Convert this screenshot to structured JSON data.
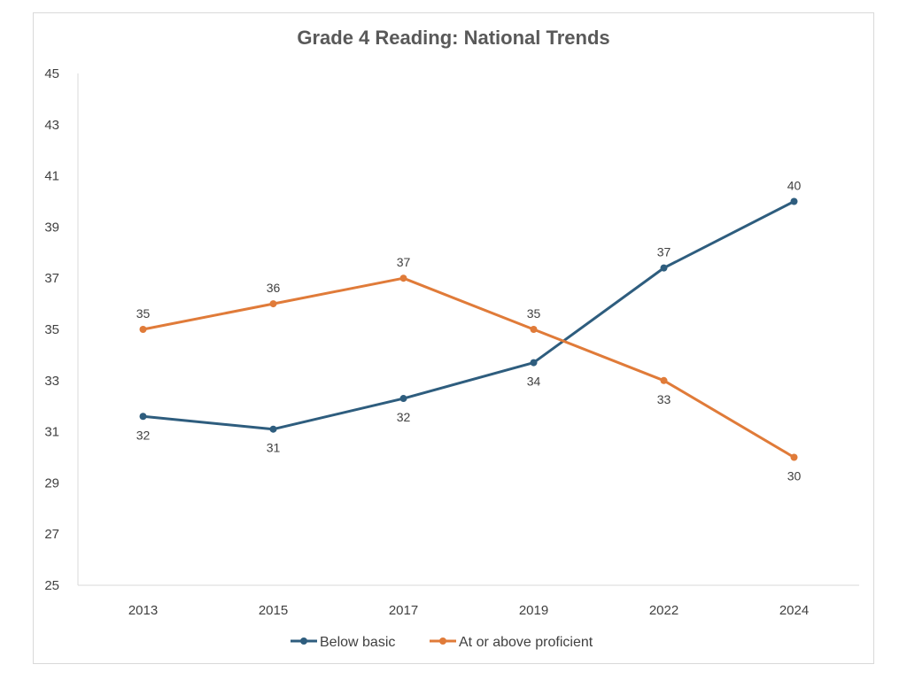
{
  "chart_data": {
    "type": "line",
    "title": "Grade 4 Reading: National Trends",
    "xlabel": "",
    "ylabel": "",
    "categories": [
      "2013",
      "2015",
      "2017",
      "2019",
      "2022",
      "2024"
    ],
    "ylim": [
      25,
      45
    ],
    "yticks": [
      25,
      27,
      29,
      31,
      33,
      35,
      37,
      39,
      41,
      43,
      45
    ],
    "grid": false,
    "legend_position": "bottom",
    "series": [
      {
        "name": "Below basic",
        "color": "#2e5d7e",
        "values": [
          31.6,
          31.1,
          32.3,
          33.7,
          37.4,
          40
        ],
        "labels": [
          "32",
          "31",
          "32",
          "34",
          "37",
          "40"
        ],
        "label_side": [
          "below",
          "below",
          "below",
          "below",
          "above",
          "above"
        ]
      },
      {
        "name": "At or above proficient",
        "color": "#e07b39",
        "values": [
          35,
          36,
          37,
          35,
          33,
          30
        ],
        "labels": [
          "35",
          "36",
          "37",
          "35",
          "33",
          "30"
        ],
        "label_side": [
          "above",
          "above",
          "above",
          "above",
          "below",
          "below"
        ]
      }
    ]
  }
}
